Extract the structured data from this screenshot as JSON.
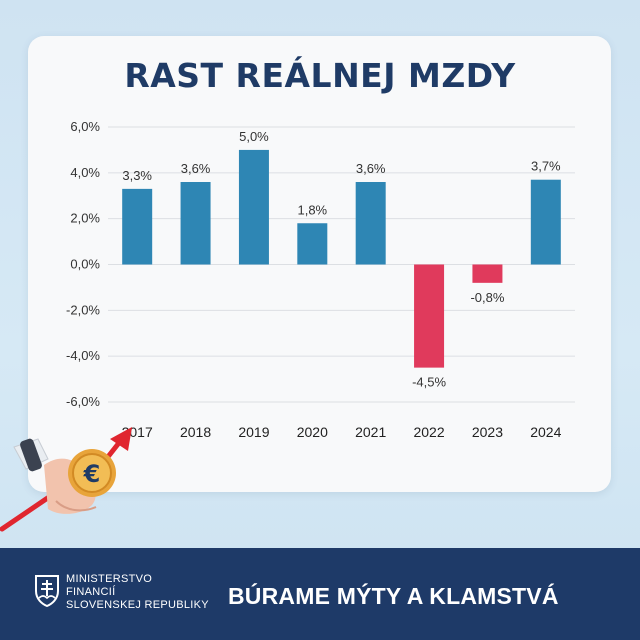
{
  "header": {
    "title": "RAST REÁLNEJ MZDY"
  },
  "chart_data": {
    "type": "bar",
    "title": "RAST REÁLNEJ MZDY",
    "categories": [
      "2017",
      "2018",
      "2019",
      "2020",
      "2021",
      "2022",
      "2023",
      "2024"
    ],
    "values": [
      3.3,
      3.6,
      5.0,
      1.8,
      3.6,
      -4.5,
      -0.8,
      3.7
    ],
    "value_labels": [
      "3,3%",
      "3,6%",
      "5,0%",
      "1,8%",
      "3,6%",
      "-4,5%",
      "-0,8%",
      "3,7%"
    ],
    "yticks": [
      6,
      4,
      2,
      0,
      -2,
      -4,
      -6
    ],
    "ytick_labels": [
      "6,0%",
      "4,0%",
      "2,0%",
      "0,0%",
      "-2,0%",
      "-4,0%",
      "-6,0%"
    ],
    "ylim": [
      -6,
      6
    ],
    "grid": true,
    "legend": "none",
    "colors": {
      "positive": "#2e86b4",
      "negative": "#e03a5c"
    }
  },
  "footer": {
    "ministry_line1": "MINISTERSTVO",
    "ministry_line2": "FINANCIÍ",
    "ministry_line3": "SLOVENSKEJ REPUBLIKY",
    "slogan": "BÚRAME MÝTY A KLAMSTVÁ"
  },
  "colors": {
    "title": "#1f3b66",
    "footer_bg": "#1e3a68",
    "arrow": "#e0262f"
  },
  "icons": [
    "hand-holding-coin-icon",
    "euro-coin-icon",
    "trend-arrow-icon",
    "slovak-crest-icon"
  ]
}
